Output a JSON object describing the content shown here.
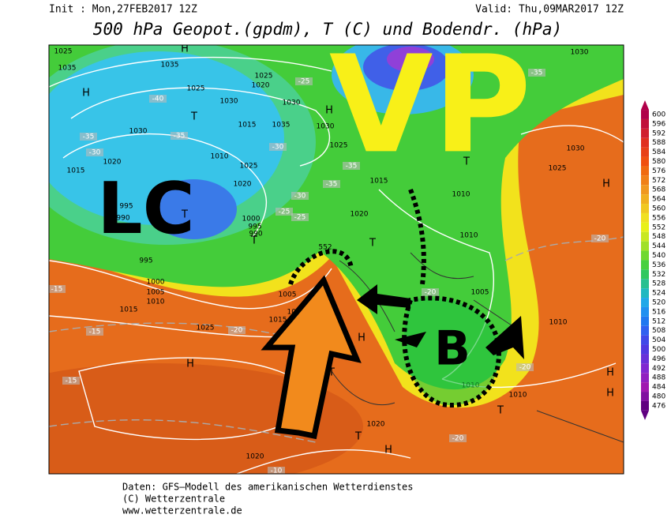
{
  "header": {
    "init": "Init : Mon,27FEB2017 12Z",
    "valid": "Valid: Thu,09MAR2017 12Z",
    "title": "500 hPa Geopot.(gpdm), T (C) und Bodendr. (hPa)"
  },
  "annotations": {
    "vp": "VP",
    "lc": "LC",
    "b": "B"
  },
  "map_labels": [
    "1025",
    "1035",
    "H",
    "1035",
    "1025",
    "H",
    "1030",
    "1020",
    "1025",
    "1035",
    "1015",
    "1030",
    "H",
    "1030",
    "1025",
    "1010",
    "1025",
    "1020",
    "1030",
    "1015",
    "1020",
    "995",
    "990",
    "1000",
    "995",
    "990",
    "995",
    "1000",
    "1005",
    "1010",
    "1015",
    "1025",
    "H",
    "1005",
    "1010",
    "1015",
    "1020",
    "1015",
    "1010",
    "1010",
    "1005",
    "1010",
    "1010",
    "1010",
    "1020",
    "1020",
    "1030",
    "1025",
    "1030",
    "H",
    "H",
    "H",
    "T",
    "T",
    "T",
    "T",
    "T",
    "T",
    "T",
    "T",
    "H",
    "H",
    "552"
  ],
  "temp_labels": [
    "-40",
    "-35",
    "-30",
    "-35",
    "-25",
    "-30",
    "-35",
    "-30",
    "-35",
    "-25",
    "-25",
    "-20",
    "-20",
    "-15",
    "-15",
    "-20",
    "-15",
    "-20",
    "-20",
    "-10",
    "-35"
  ],
  "colorbar": [
    600,
    596,
    592,
    588,
    584,
    580,
    576,
    572,
    568,
    564,
    560,
    556,
    552,
    548,
    544,
    540,
    536,
    532,
    528,
    524,
    520,
    516,
    512,
    508,
    504,
    500,
    496,
    492,
    488,
    484,
    480,
    476
  ],
  "footer": {
    "line1": "Daten: GFS–Modell des amerikanischen Wetterdienstes",
    "line2": "(C) Wetterzentrale",
    "line3": "www.wetterzentrale.de"
  }
}
